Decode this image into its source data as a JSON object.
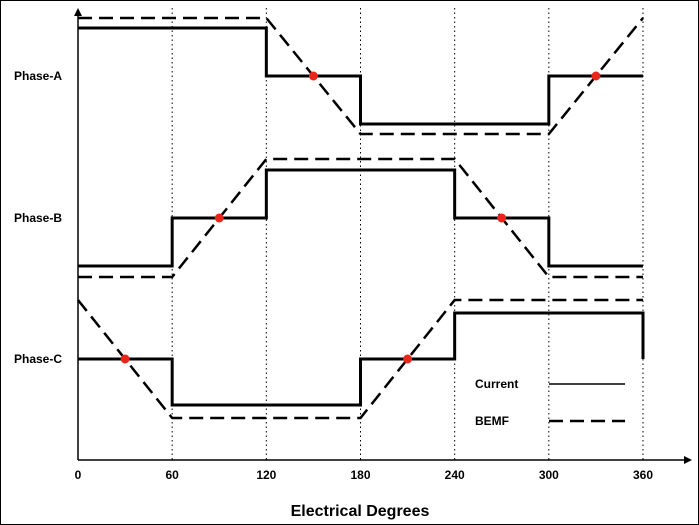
{
  "chart_data": {
    "type": "line",
    "title": "",
    "xlabel": "Electrical Degrees",
    "ylabel": "",
    "x_ticks": [
      0,
      60,
      120,
      180,
      240,
      300,
      360
    ],
    "xlim": [
      0,
      360
    ],
    "grid_vertical": true,
    "phases": [
      {
        "name": "Phase-A",
        "current": {
          "x": [
            0,
            120,
            120,
            180,
            180,
            300,
            300,
            360
          ],
          "y": [
            1,
            1,
            0,
            0,
            -1,
            -1,
            0,
            0
          ]
        },
        "bemf": {
          "x": [
            0,
            120,
            180,
            300,
            360
          ],
          "y": [
            1,
            1,
            -1,
            -1,
            1
          ]
        },
        "zero_crossings": [
          150,
          330
        ]
      },
      {
        "name": "Phase-B",
        "current": {
          "x": [
            0,
            60,
            60,
            120,
            120,
            240,
            240,
            300,
            300,
            360
          ],
          "y": [
            -1,
            -1,
            0,
            0,
            1,
            1,
            0,
            0,
            -1,
            -1
          ]
        },
        "bemf": {
          "x": [
            0,
            60,
            120,
            240,
            300,
            360
          ],
          "y": [
            -1,
            -1,
            1,
            1,
            -1,
            -1
          ]
        },
        "zero_crossings": [
          90,
          270
        ]
      },
      {
        "name": "Phase-C",
        "current": {
          "x": [
            0,
            60,
            60,
            180,
            180,
            240,
            240,
            360,
            360
          ],
          "y": [
            0,
            0,
            -1,
            -1,
            0,
            0,
            1,
            1,
            0
          ]
        },
        "bemf": {
          "x": [
            0,
            60,
            180,
            240,
            360
          ],
          "y": [
            1,
            -1,
            -1,
            1,
            1
          ]
        },
        "zero_crossings": [
          30,
          210
        ]
      }
    ],
    "legend": {
      "position": "bottom-right",
      "entries": [
        {
          "name": "Current",
          "style": "solid"
        },
        {
          "name": "BEMF",
          "style": "dashed"
        }
      ]
    },
    "colors": {
      "line": "#000000",
      "marker": "#e8261c"
    }
  }
}
